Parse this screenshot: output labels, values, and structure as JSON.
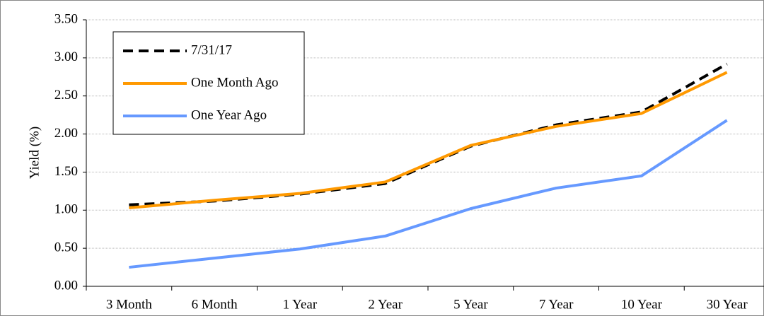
{
  "chart_data": {
    "type": "line",
    "y_label": "Yield (%)",
    "categories": [
      "3 Month",
      "6 Month",
      "1 Year",
      "2 Year",
      "5 Year",
      "7 Year",
      "10 Year",
      "30 Year"
    ],
    "series": [
      {
        "name": "7/31/17",
        "color": "#000000",
        "dashed": true,
        "values": [
          1.07,
          1.12,
          1.21,
          1.35,
          1.84,
          2.12,
          2.29,
          2.92
        ]
      },
      {
        "name": "One Month Ago",
        "color": "#ff9900",
        "dashed": false,
        "values": [
          1.03,
          1.13,
          1.22,
          1.37,
          1.85,
          2.1,
          2.27,
          2.81
        ]
      },
      {
        "name": "One Year Ago",
        "color": "#6699ff",
        "dashed": false,
        "values": [
          0.25,
          0.37,
          0.49,
          0.66,
          1.02,
          1.29,
          1.45,
          2.18
        ]
      }
    ],
    "ylim": [
      0,
      3.5
    ],
    "yticks": [
      {
        "value": 0,
        "label": "0.00"
      },
      {
        "value": 0.5,
        "label": "0.50"
      },
      {
        "value": 1,
        "label": "1.00"
      },
      {
        "value": 1.5,
        "label": "1.50"
      },
      {
        "value": 2,
        "label": "2.00"
      },
      {
        "value": 2.5,
        "label": "2.50"
      },
      {
        "value": 3,
        "label": "3.00"
      },
      {
        "value": 3.5,
        "label": "3.50"
      }
    ],
    "grid": true,
    "legend": "upper left"
  }
}
